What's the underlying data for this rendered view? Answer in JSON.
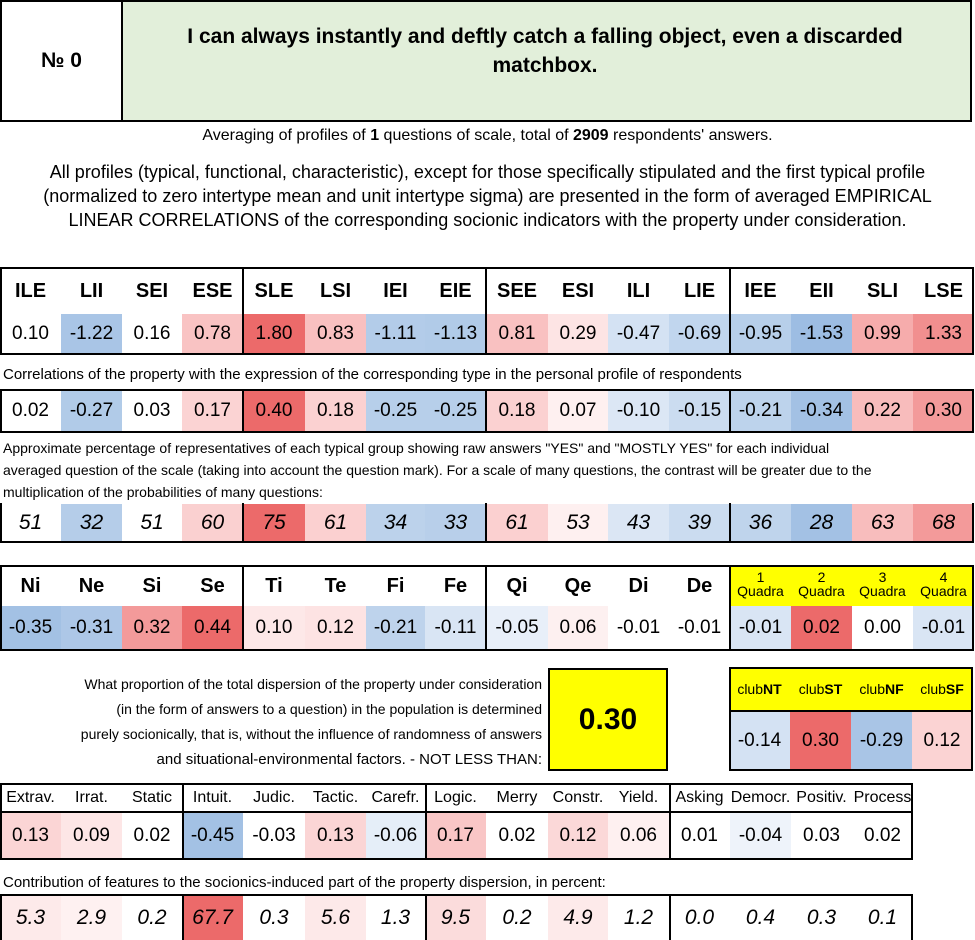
{
  "header": {
    "number_label": "№",
    "number_value": "0",
    "question": "I can always instantly and deftly catch a falling object, even a discarded matchbox."
  },
  "summary": {
    "pre": "Averaging of profiles of ",
    "questions": "1",
    "mid": " questions of scale, total of ",
    "respondents": "2909",
    "post": " respondents' answers."
  },
  "description": "All profiles (typical, functional, characteristic), except for those specifically stipulated and the first typical profile (normalized to zero intertype mean and unit intertype sigma) are presented in the form of averaged EMPIRICAL LINEAR CORRELATIONS of the corresponding socionic indicators with the property under consideration.",
  "types": {
    "labels": [
      "ILE",
      "LII",
      "SEI",
      "ESE",
      "SLE",
      "LSI",
      "IEI",
      "EIE",
      "SEE",
      "ESI",
      "ILI",
      "LIE",
      "IEE",
      "EII",
      "SLI",
      "LSE"
    ],
    "normalized": [
      "0.10",
      "-1.22",
      "0.16",
      "0.78",
      "1.80",
      "0.83",
      "-1.11",
      "-1.13",
      "0.81",
      "0.29",
      "-0.47",
      "-0.69",
      "-0.95",
      "-1.53",
      "0.99",
      "1.33"
    ],
    "normalized_colors": [
      "#ffffff",
      "#a9c5e6",
      "#ffffff",
      "#f9c3c3",
      "#ec6a6a",
      "#f9c0c0",
      "#b3cce9",
      "#b1cbe8",
      "#f9c1c1",
      "#fde4e4",
      "#d4e2f3",
      "#c1d6ee",
      "#b7cfea",
      "#9dbde3",
      "#f6acac",
      "#f18f8f"
    ],
    "correlation_note": "Correlations of the property with the expression of the corresponding type in the personal profile of respondents",
    "correlations": [
      "0.02",
      "-0.27",
      "0.03",
      "0.17",
      "0.40",
      "0.18",
      "-0.25",
      "-0.25",
      "0.18",
      "0.07",
      "-0.10",
      "-0.15",
      "-0.21",
      "-0.34",
      "0.22",
      "0.30"
    ],
    "correlation_colors": [
      "#ffffff",
      "#b1cbe8",
      "#ffffff",
      "#fbd3d3",
      "#ec6a6a",
      "#fbd1d1",
      "#b7cfea",
      "#b7cfea",
      "#fbd1d1",
      "#fef0f0",
      "#dce7f5",
      "#cbdcf0",
      "#bdd3ec",
      "#a3c1e4",
      "#f8bcbc",
      "#f39a9a"
    ],
    "percentage_note_1": "Approximate percentage of representatives of each typical group showing raw answers \"YES\" and \"MOSTLY YES\" for each individual",
    "percentage_note_2": "averaged question of the scale (taking into account the question mark). For a scale of many questions, the contrast will be greater due to the",
    "percentage_note_3": "multiplication of the probabilities of many questions:",
    "percentages": [
      "51",
      "32",
      "51",
      "60",
      "75",
      "61",
      "34",
      "33",
      "61",
      "53",
      "43",
      "39",
      "36",
      "28",
      "63",
      "68"
    ],
    "percentage_colors": [
      "#ffffff",
      "#b5cde9",
      "#ffffff",
      "#fad0d0",
      "#ec6a6a",
      "#fbd0d0",
      "#bcd2eb",
      "#b8cfea",
      "#fbd0d0",
      "#fef0f0",
      "#dbe6f4",
      "#cbdcf0",
      "#bfd4ec",
      "#a3c1e4",
      "#f8bdbd",
      "#f39a9a"
    ]
  },
  "functions": {
    "labels": [
      "Ni",
      "Ne",
      "Si",
      "Se",
      "Ti",
      "Te",
      "Fi",
      "Fe",
      "Qi",
      "Qe",
      "Di",
      "De"
    ],
    "values": [
      "-0.35",
      "-0.31",
      "0.32",
      "0.44",
      "0.10",
      "0.12",
      "-0.21",
      "-0.11",
      "-0.05",
      "0.06",
      "-0.01",
      "-0.01"
    ],
    "colors": [
      "#a3c1e4",
      "#adc7e7",
      "#f39a9a",
      "#ec6a6a",
      "#fde8e8",
      "#fde3e3",
      "#bed3ec",
      "#d9e5f4",
      "#e8eff9",
      "#fdf0f0",
      "#ffffff",
      "#ffffff"
    ]
  },
  "quadras": {
    "labels": [
      [
        "1",
        "Quadra"
      ],
      [
        "2",
        "Quadra"
      ],
      [
        "3",
        "Quadra"
      ],
      [
        "4",
        "Quadra"
      ]
    ],
    "values": [
      "-0.01",
      "0.02",
      "0.00",
      "-0.01"
    ],
    "colors": [
      "#d9e5f4",
      "#ec6a6a",
      "#ffffff",
      "#d9e5f4"
    ],
    "header_color": "#ffff00"
  },
  "dispersion": {
    "line1": "What proportion of the total dispersion of the property under consideration",
    "line2": "(in the form of answers to a question) in the population is determined",
    "line3": "purely socionically, that is, without the influence of randomness of answers",
    "line4": "and situational-environmental factors. - NOT LESS THAN:",
    "value": "0.30",
    "value_bg": "#ffff00"
  },
  "clubs": {
    "prefix": "club",
    "labels": [
      "NT",
      "ST",
      "NF",
      "SF"
    ],
    "values": [
      "-0.14",
      "0.30",
      "-0.29",
      "0.12"
    ],
    "colors": [
      "#d4e2f3",
      "#ec6a6a",
      "#a9c5e6",
      "#fbd3d3"
    ],
    "header_color": "#ffff00"
  },
  "traits": {
    "labels": [
      "Extrav.",
      "Irrat.",
      "Static",
      "Intuit.",
      "Judic.",
      "Tactic.",
      "Carefr.",
      "Logic.",
      "Merry",
      "Constr.",
      "Yield.",
      "Asking",
      "Democr.",
      "Positiv.",
      "Process"
    ],
    "values": [
      "0.13",
      "0.09",
      "0.02",
      "-0.45",
      "-0.03",
      "0.13",
      "-0.06",
      "0.17",
      "0.02",
      "0.12",
      "0.06",
      "0.01",
      "-0.04",
      "0.03",
      "0.02"
    ],
    "colors": [
      "#fbd5d5",
      "#fde6e6",
      "#ffffff",
      "#a3c1e4",
      "#ffffff",
      "#fbd5d5",
      "#e5eef8",
      "#f9c6c6",
      "#ffffff",
      "#fbd8d8",
      "#fef0f0",
      "#ffffff",
      "#eef3fa",
      "#ffffff",
      "#ffffff"
    ],
    "contribution_note": "Contribution of features to the socionics-induced part of the property dispersion, in percent:",
    "contributions": [
      "5.3",
      "2.9",
      "0.2",
      "67.7",
      "0.3",
      "5.6",
      "1.3",
      "9.5",
      "0.2",
      "4.9",
      "1.2",
      "0.0",
      "0.4",
      "0.3",
      "0.1"
    ],
    "contribution_colors": [
      "#fdeaea",
      "#fef1f1",
      "#ffffff",
      "#ec6a6a",
      "#ffffff",
      "#fde9e9",
      "#ffffff",
      "#fbdcdc",
      "#ffffff",
      "#fdeaea",
      "#ffffff",
      "#ffffff",
      "#ffffff",
      "#ffffff",
      "#ffffff"
    ]
  }
}
